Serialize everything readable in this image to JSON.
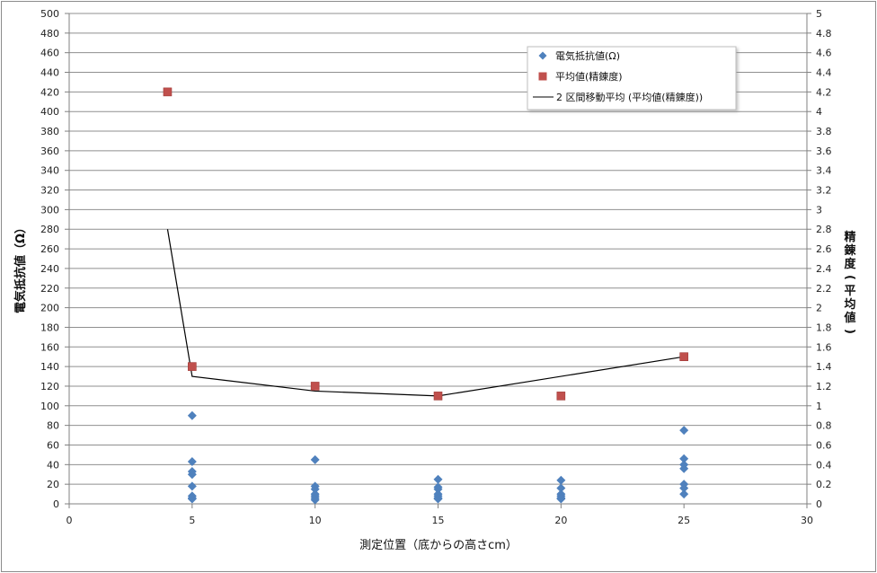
{
  "chart_data": {
    "type": "scatter",
    "x_axis": {
      "label": "測定位置（底からの高さcm）",
      "range": [
        0,
        30
      ],
      "ticks": [
        "0",
        "5",
        "10",
        "15",
        "20",
        "25",
        "30"
      ]
    },
    "y_axis_left": {
      "label": "電気抵抗値（Ω）",
      "range": [
        0,
        500
      ],
      "ticks": [
        "0",
        "20",
        "40",
        "60",
        "80",
        "100",
        "120",
        "140",
        "160",
        "180",
        "200",
        "220",
        "240",
        "260",
        "280",
        "300",
        "320",
        "340",
        "360",
        "380",
        "400",
        "420",
        "440",
        "460",
        "480",
        "500"
      ],
      "grid": true
    },
    "y_axis_right": {
      "label": "精錬度(平均値)",
      "range": [
        0,
        5
      ],
      "ticks": [
        "0",
        "0.2",
        "0.4",
        "0.6",
        "0.8",
        "1",
        "1.2",
        "1.4",
        "1.6",
        "1.8",
        "2",
        "2.2",
        "2.4",
        "2.6",
        "2.8",
        "3",
        "3.2",
        "3.4",
        "3.6",
        "3.8",
        "4",
        "4.2",
        "4.4",
        "4.6",
        "4.8",
        "5"
      ]
    },
    "series": [
      {
        "name": "電気抵抗値(Ω)",
        "kind": "scatter",
        "marker": "diamond",
        "color": "#4f81bd",
        "axis": "left",
        "points": [
          [
            5,
            90
          ],
          [
            5,
            43
          ],
          [
            5,
            33
          ],
          [
            5,
            30
          ],
          [
            5,
            18
          ],
          [
            5,
            8
          ],
          [
            5,
            6
          ],
          [
            5,
            5
          ],
          [
            10,
            45
          ],
          [
            10,
            18
          ],
          [
            10,
            15
          ],
          [
            10,
            10
          ],
          [
            10,
            8
          ],
          [
            10,
            6
          ],
          [
            10,
            4
          ],
          [
            15,
            25
          ],
          [
            15,
            17
          ],
          [
            15,
            15
          ],
          [
            15,
            10
          ],
          [
            15,
            8
          ],
          [
            15,
            6
          ],
          [
            15,
            5
          ],
          [
            20,
            24
          ],
          [
            20,
            16
          ],
          [
            20,
            10
          ],
          [
            20,
            8
          ],
          [
            20,
            6
          ],
          [
            20,
            5
          ],
          [
            25,
            75
          ],
          [
            25,
            46
          ],
          [
            25,
            40
          ],
          [
            25,
            36
          ],
          [
            25,
            20
          ],
          [
            25,
            16
          ],
          [
            25,
            10
          ]
        ]
      },
      {
        "name": "平均値(精錬度)",
        "kind": "scatter",
        "marker": "square",
        "color": "#c0504d",
        "axis": "right",
        "points": [
          [
            4,
            4.2
          ],
          [
            5,
            1.4
          ],
          [
            10,
            1.2
          ],
          [
            15,
            1.1
          ],
          [
            20,
            1.1
          ],
          [
            25,
            1.5
          ]
        ]
      },
      {
        "name": "2 区間移動平均 (平均値(精錬度))",
        "kind": "line",
        "color": "#000000",
        "axis": "right",
        "points": [
          [
            4,
            2.8
          ],
          [
            5,
            1.3
          ],
          [
            10,
            1.15
          ],
          [
            15,
            1.1
          ],
          [
            25,
            1.5
          ]
        ]
      }
    ],
    "legend_position": "top-right"
  }
}
